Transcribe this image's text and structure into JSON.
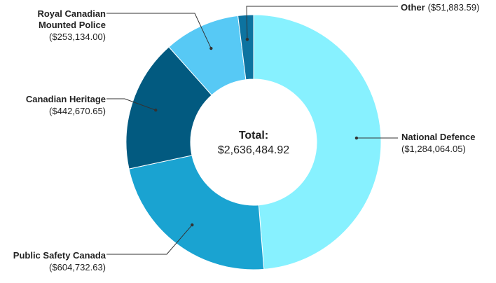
{
  "chart_data": {
    "type": "pie",
    "donut": true,
    "center": {
      "title": "Total:",
      "value": "$2,636,484.92"
    },
    "slices": [
      {
        "name": "National Defence",
        "value": 1284064.05,
        "display": "($1,284,064.05)",
        "color": "#87f1ff"
      },
      {
        "name": "Public Safety Canada",
        "value": 604732.63,
        "display": "($604,732.63)",
        "color": "#1aa3d1"
      },
      {
        "name": "Canadian Heritage",
        "value": 442670.65,
        "display": "($442,670.65)",
        "color": "#025a80"
      },
      {
        "name": "Royal Canadian Mounted Police",
        "value": 253134.0,
        "display": "($253,134.00)",
        "color": "#57c9f5"
      },
      {
        "name": "Other",
        "value": 51883.59,
        "display": "($51,883.59)",
        "color": "#0d73a0"
      }
    ]
  }
}
